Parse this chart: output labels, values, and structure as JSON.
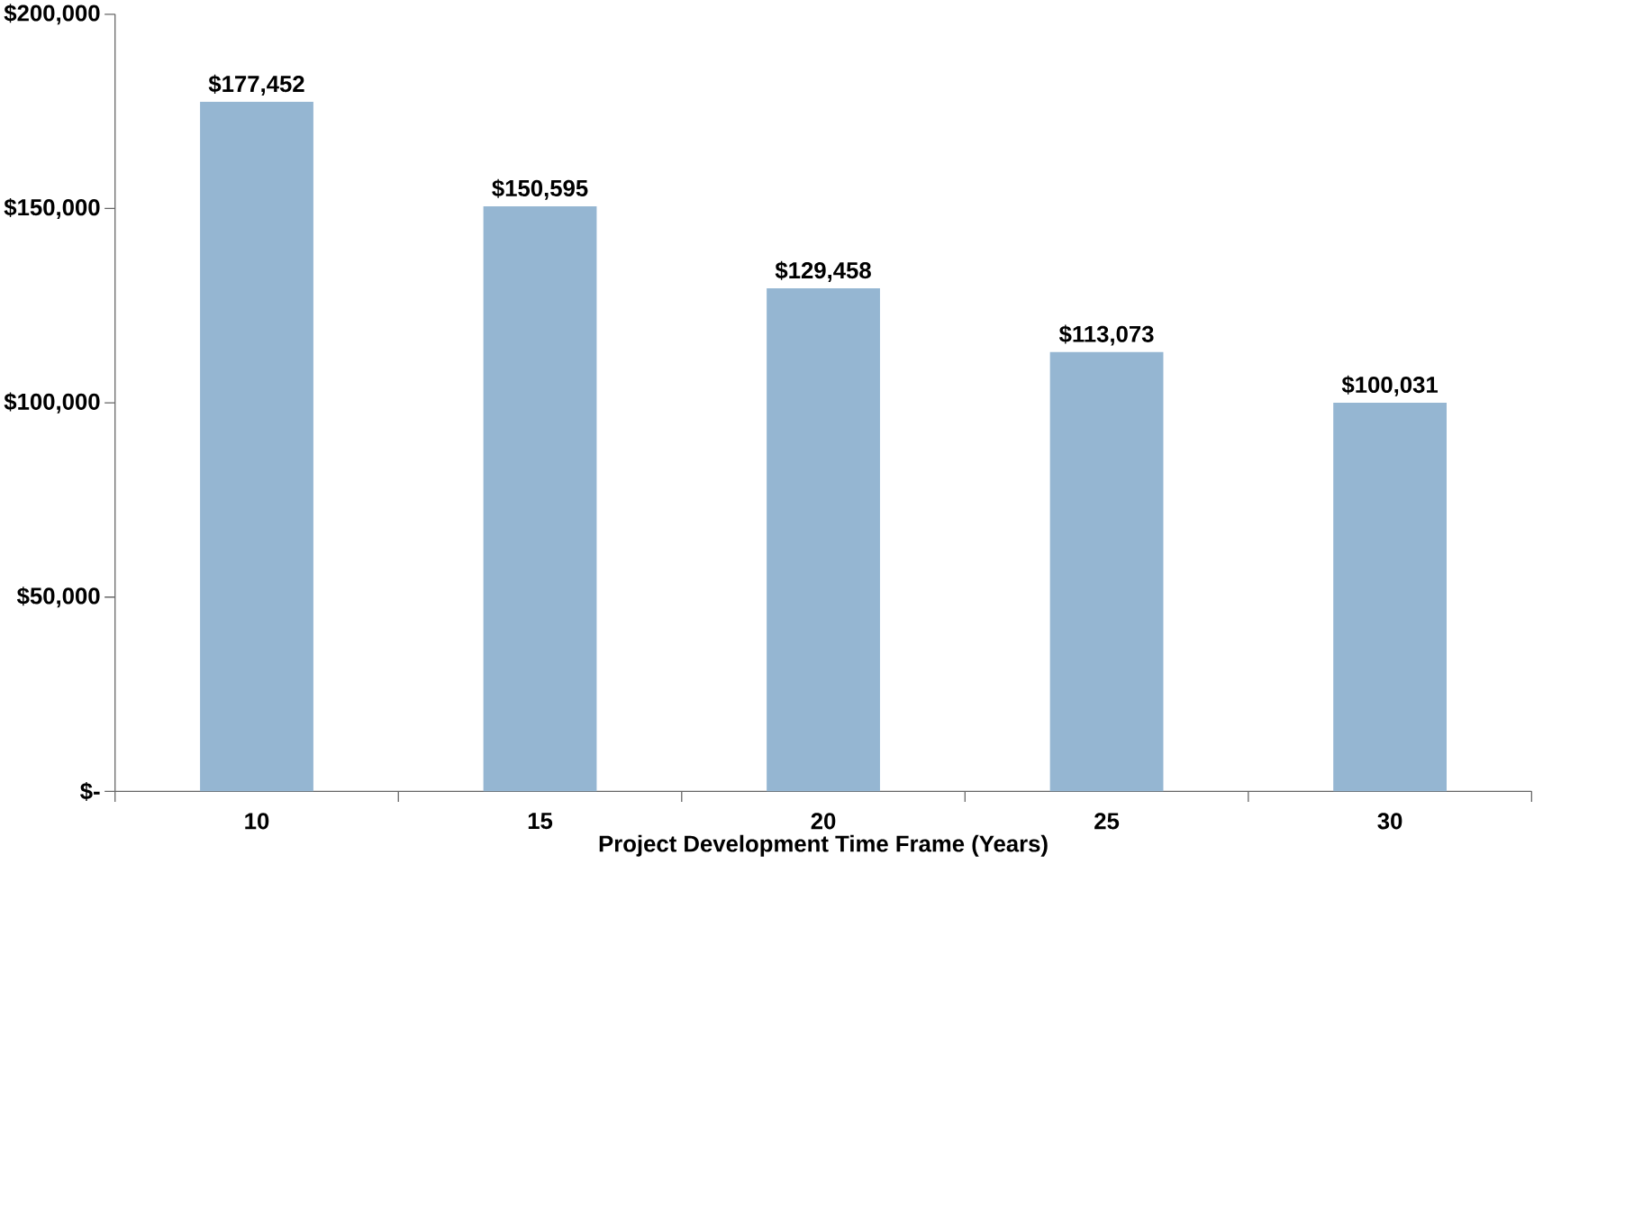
{
  "chart_data": {
    "type": "bar",
    "xlabel": "Project Development Time Frame (Years)",
    "categories": [
      "10",
      "15",
      "20",
      "25",
      "30"
    ],
    "values": [
      177452,
      150595,
      129458,
      113073,
      100031
    ],
    "value_labels": [
      "$177,452",
      "$150,595",
      "$129,458",
      "$113,073",
      "$100,031"
    ],
    "color": "#95b6d2",
    "ylim": [
      0,
      200000
    ],
    "yticks": [
      {
        "value": 0,
        "label": "$-"
      },
      {
        "value": 50000,
        "label": "$50,000"
      },
      {
        "value": 100000,
        "label": "$100,000"
      },
      {
        "value": 150000,
        "label": "$150,000"
      },
      {
        "value": 200000,
        "label": "$200,000"
      }
    ],
    "grid": false
  }
}
